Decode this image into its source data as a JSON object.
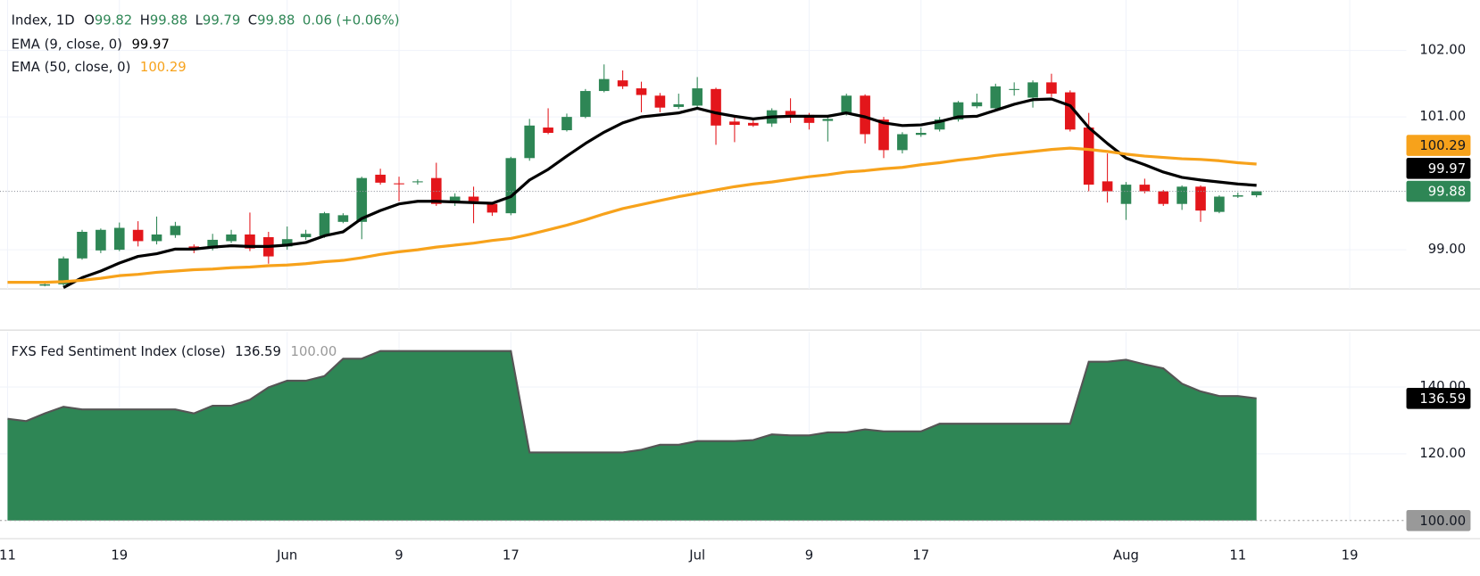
{
  "chart_data": [
    {
      "type": "candlestick",
      "title": "Index, 1D",
      "ohlc_labels": [
        "O",
        "H",
        "L",
        "C"
      ],
      "change_text": "0.06 (+0.06%)",
      "categories": [
        "11",
        null,
        null,
        null,
        null,
        null,
        "19",
        null,
        null,
        null,
        null,
        null,
        null,
        null,
        null,
        "Jun",
        null,
        null,
        null,
        null,
        null,
        "9",
        null,
        null,
        null,
        null,
        null,
        "17",
        null,
        null,
        null,
        null,
        null,
        null,
        null,
        null,
        null,
        "Jul",
        null,
        null,
        null,
        null,
        null,
        "9",
        null,
        null,
        null,
        null,
        null,
        "17",
        null,
        null,
        null,
        null,
        null,
        null,
        null,
        null,
        null,
        null,
        "Aug",
        null,
        null,
        null,
        null,
        null,
        "11",
        null,
        null,
        null,
        null,
        null,
        "19"
      ],
      "open": [
        null,
        null,
        98.46,
        98.48,
        98.87,
        98.99,
        99.0,
        99.3,
        99.13,
        99.22,
        99.05,
        99.02,
        99.13,
        99.23,
        99.19,
        99.05,
        99.19,
        99.21,
        99.42,
        99.42,
        100.13,
        100.0,
        100.02,
        100.08,
        99.7,
        99.8,
        99.69,
        99.55,
        100.38,
        100.84,
        100.8,
        101.0,
        101.39,
        101.55,
        101.43,
        101.32,
        101.15,
        101.17,
        101.42,
        100.93,
        100.91,
        100.9,
        101.09,
        101.03,
        100.94,
        101.05,
        101.32,
        100.96,
        100.5,
        100.73,
        100.81,
        100.96,
        101.16,
        101.13,
        101.41,
        101.29,
        101.52,
        101.37,
        100.84,
        100.03,
        99.69,
        99.98,
        99.88,
        99.69,
        99.95,
        99.57,
        99.8,
        99.82,
        null,
        null,
        null,
        null,
        null
      ],
      "high": [
        null,
        null,
        98.52,
        98.9,
        99.3,
        99.32,
        99.41,
        99.43,
        99.5,
        99.42,
        99.08,
        99.24,
        99.3,
        99.56,
        99.27,
        99.35,
        99.3,
        99.57,
        99.55,
        100.1,
        100.22,
        100.1,
        100.06,
        100.31,
        99.85,
        99.95,
        99.72,
        100.4,
        100.97,
        101.13,
        101.05,
        101.42,
        101.79,
        101.7,
        101.53,
        101.36,
        101.35,
        101.6,
        101.44,
        101.01,
        100.98,
        101.13,
        101.28,
        101.06,
        101.0,
        101.35,
        101.34,
        101.0,
        100.77,
        100.84,
        101.0,
        101.24,
        101.35,
        101.5,
        101.52,
        101.55,
        101.65,
        101.4,
        101.06,
        100.45,
        100.02,
        100.07,
        99.9,
        99.97,
        99.97,
        99.82,
        99.86,
        99.88,
        null,
        null,
        null,
        null,
        null
      ],
      "low": [
        null,
        null,
        98.45,
        98.45,
        98.85,
        98.95,
        98.98,
        99.05,
        99.08,
        99.18,
        98.95,
        98.99,
        99.1,
        98.98,
        98.79,
        99.0,
        99.15,
        99.18,
        99.4,
        99.16,
        99.98,
        99.73,
        99.98,
        99.66,
        99.66,
        99.4,
        99.51,
        99.52,
        100.34,
        100.74,
        100.78,
        100.98,
        101.37,
        101.42,
        101.07,
        101.07,
        101.12,
        101.15,
        100.58,
        100.62,
        100.85,
        100.85,
        100.91,
        100.81,
        100.63,
        101.02,
        100.6,
        100.38,
        100.45,
        100.7,
        100.78,
        100.93,
        101.13,
        101.1,
        101.32,
        101.14,
        101.3,
        100.78,
        99.88,
        99.71,
        99.45,
        99.85,
        99.66,
        99.6,
        99.42,
        99.55,
        99.78,
        99.79,
        null,
        null,
        null,
        null,
        null
      ],
      "close": [
        null,
        null,
        98.48,
        98.87,
        99.27,
        99.3,
        99.33,
        99.13,
        99.23,
        99.36,
        99.0,
        99.15,
        99.23,
        99.02,
        98.9,
        99.16,
        99.24,
        99.55,
        99.52,
        100.08,
        100.01,
        99.99,
        100.03,
        99.69,
        99.8,
        99.73,
        99.56,
        100.38,
        100.87,
        100.76,
        101.0,
        101.39,
        101.57,
        101.46,
        101.33,
        101.14,
        101.19,
        101.43,
        100.87,
        100.88,
        100.87,
        101.1,
        101.03,
        100.91,
        100.97,
        101.32,
        100.74,
        100.5,
        100.74,
        100.76,
        100.96,
        101.22,
        101.22,
        101.46,
        101.42,
        101.52,
        101.35,
        100.81,
        99.98,
        99.88,
        99.98,
        99.88,
        99.69,
        99.95,
        99.59,
        99.8,
        99.82,
        99.88,
        null,
        null,
        null,
        null,
        null
      ],
      "up_color": "#2e8655",
      "down_color": "#e3161b",
      "series": [
        {
          "name": "EMA (9, close, 0)",
          "color": "#000000",
          "values": [
            null,
            null,
            null,
            98.43,
            98.58,
            98.68,
            98.8,
            98.9,
            98.94,
            99.01,
            99.01,
            99.04,
            99.06,
            99.05,
            99.05,
            99.07,
            99.11,
            99.21,
            99.27,
            99.47,
            99.59,
            99.69,
            99.73,
            99.73,
            99.72,
            99.71,
            99.7,
            99.8,
            100.05,
            100.21,
            100.41,
            100.6,
            100.77,
            100.91,
            101.0,
            101.03,
            101.06,
            101.13,
            101.06,
            101.01,
            100.97,
            101.0,
            101.01,
            101.01,
            101.01,
            101.06,
            101.0,
            100.91,
            100.87,
            100.88,
            100.93,
            101.0,
            101.01,
            101.1,
            101.19,
            101.26,
            101.27,
            101.17,
            100.84,
            100.6,
            100.38,
            100.28,
            100.17,
            100.09,
            100.05,
            100.02,
            99.99,
            99.97,
            null,
            null,
            null,
            null,
            null
          ]
        },
        {
          "name": "EMA (50, close, 0)",
          "color": "#f7a21b",
          "values": [
            98.51,
            98.51,
            98.51,
            98.52,
            98.54,
            98.57,
            98.61,
            98.63,
            98.66,
            98.68,
            98.7,
            98.71,
            98.73,
            98.74,
            98.76,
            98.77,
            98.79,
            98.82,
            98.84,
            98.88,
            98.93,
            98.97,
            99.0,
            99.04,
            99.07,
            99.1,
            99.14,
            99.17,
            99.23,
            99.3,
            99.37,
            99.45,
            99.54,
            99.62,
            99.68,
            99.74,
            99.8,
            99.85,
            99.9,
            99.95,
            99.99,
            100.02,
            100.06,
            100.1,
            100.13,
            100.17,
            100.19,
            100.22,
            100.24,
            100.28,
            100.31,
            100.35,
            100.38,
            100.42,
            100.45,
            100.48,
            100.51,
            100.53,
            100.51,
            100.48,
            100.44,
            100.41,
            100.39,
            100.37,
            100.36,
            100.34,
            100.31,
            100.29,
            null,
            null,
            null,
            null,
            null
          ]
        }
      ],
      "ylim": [
        98.41,
        102.76
      ],
      "yticks": [
        {
          "value": 102,
          "label": "102.00"
        },
        {
          "value": 101,
          "label": "101.00"
        },
        {
          "value": 99,
          "label": "99.00"
        }
      ],
      "grid": true
    },
    {
      "type": "area",
      "title": "FXS Fed Sentiment Index (close)",
      "color": "#2e8655",
      "line_color": "#555555",
      "values": [
        130.5,
        129.8,
        132.1,
        134.1,
        133.3,
        133.3,
        133.3,
        133.3,
        133.3,
        133.3,
        132.1,
        134.4,
        134.4,
        136.2,
        139.9,
        141.9,
        141.9,
        143.3,
        148.5,
        148.5,
        150.8,
        150.8,
        150.8,
        150.8,
        150.8,
        150.8,
        150.8,
        150.8,
        120.4,
        120.4,
        120.4,
        120.4,
        120.4,
        120.4,
        121.2,
        122.7,
        122.7,
        123.8,
        123.8,
        123.8,
        124.1,
        125.8,
        125.5,
        125.5,
        126.4,
        126.4,
        127.3,
        126.7,
        126.7,
        126.7,
        129.0,
        129.0,
        129.0,
        129.0,
        129.0,
        129.0,
        129.0,
        129.0,
        147.6,
        147.6,
        148.2,
        146.8,
        145.6,
        141.0,
        138.7,
        137.3,
        137.3,
        136.59,
        null,
        null,
        null,
        null,
        null
      ],
      "hline": {
        "value": 100,
        "label": "100.00",
        "color": "#999999"
      },
      "ylim": [
        100,
        156.5
      ],
      "yticks": [
        {
          "value": 140,
          "label": "140.00"
        },
        {
          "value": 120,
          "label": "120.00"
        }
      ],
      "grid": true
    }
  ]
}
